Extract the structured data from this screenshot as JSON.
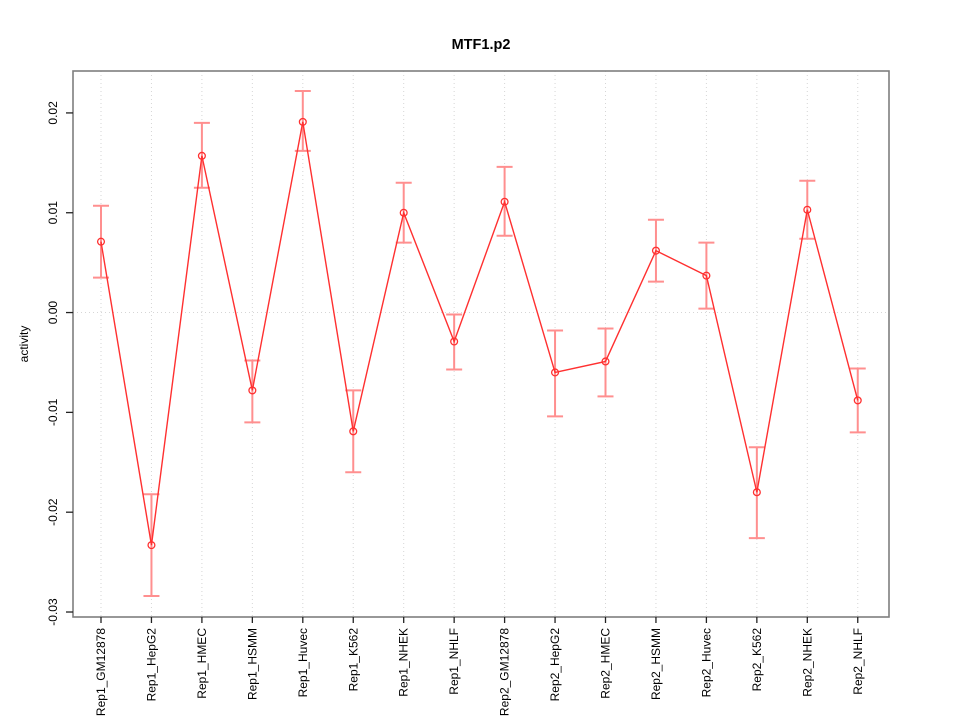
{
  "figure": {
    "title": "MTF1.p2",
    "background": "#ffffff"
  },
  "chart_data": {
    "type": "line",
    "subtype": "points-with-error-bars",
    "title": "MTF1.p2",
    "xlabel": "",
    "ylabel": "activity",
    "categories": [
      "Rep1_GM12878",
      "Rep1_HepG2",
      "Rep1_HMEC",
      "Rep1_HSMM",
      "Rep1_Huvec",
      "Rep1_K562",
      "Rep1_NHEK",
      "Rep1_NHLF",
      "Rep2_GM12878",
      "Rep2_HepG2",
      "Rep2_HMEC",
      "Rep2_HSMM",
      "Rep2_Huvec",
      "Rep2_K562",
      "Rep2_NHEK",
      "Rep2_NHLF"
    ],
    "series": [
      {
        "name": "activity",
        "values": [
          0.0071,
          -0.0233,
          0.0157,
          -0.0078,
          0.0191,
          -0.0119,
          0.01,
          -0.0029,
          0.0111,
          -0.006,
          -0.0049,
          0.0062,
          0.0037,
          -0.018,
          0.0103,
          -0.0088
        ],
        "upper": [
          0.0107,
          -0.0182,
          0.019,
          -0.0048,
          0.0222,
          -0.0078,
          0.013,
          -0.0002,
          0.0146,
          -0.0018,
          -0.0016,
          0.0093,
          0.007,
          -0.0135,
          0.0132,
          -0.0056
        ],
        "lower": [
          0.0035,
          -0.0284,
          0.0125,
          -0.011,
          0.0162,
          -0.016,
          0.007,
          -0.0057,
          0.0077,
          -0.0104,
          -0.0084,
          0.0031,
          0.0004,
          -0.0226,
          0.0074,
          -0.012
        ]
      }
    ],
    "ylim": [
      -0.0305,
      0.0242
    ],
    "yticks": [
      0.02,
      0.01,
      0,
      -0.01,
      -0.02,
      -0.03
    ],
    "ytick_labels": [
      "0.02",
      "0.01",
      "0.00",
      "-0.01",
      "-0.02",
      "-0.03"
    ],
    "grid": {
      "vertical_per_category": true,
      "zero_line": true,
      "style": "dotted"
    },
    "legend_position": "none",
    "colors": {
      "line": "#ff3030",
      "point": "#ff3030",
      "error_bar": "#ff8f8f",
      "grid": "#d6d6d6",
      "box": "#7f7f7f",
      "tick": "#222222",
      "text": "#000000"
    }
  }
}
